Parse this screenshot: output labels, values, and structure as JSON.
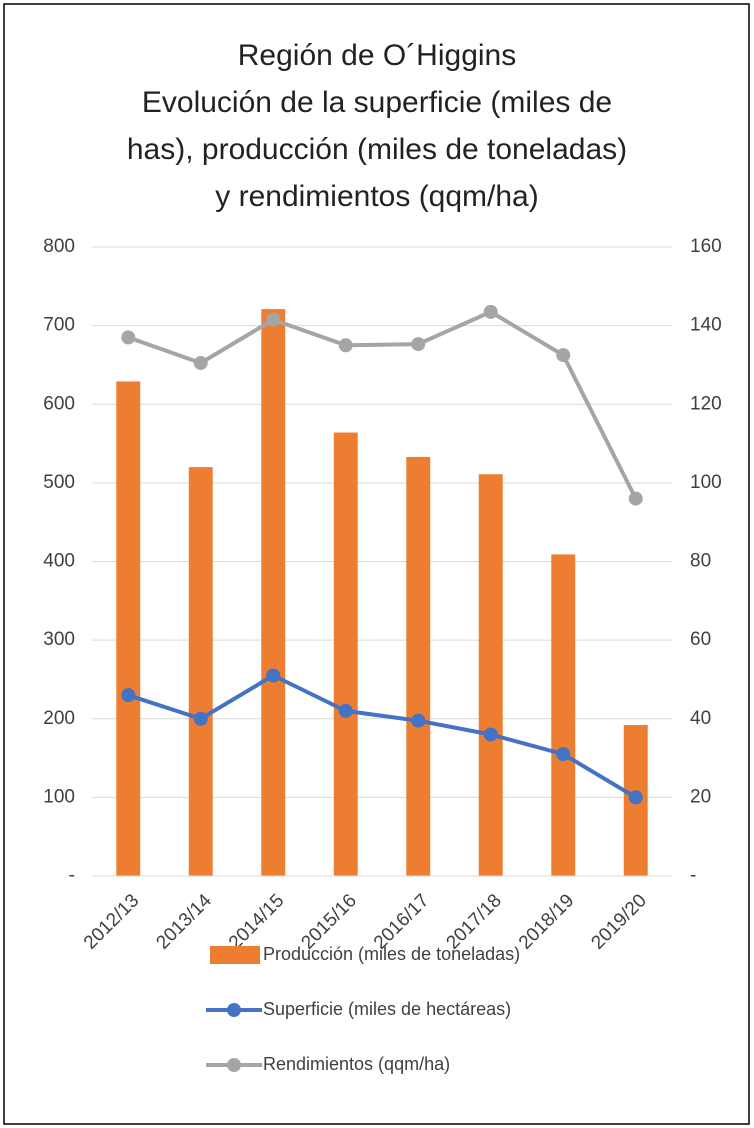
{
  "chart_data": {
    "type": "bar_line",
    "title": [
      "Región de O´Higgins",
      "Evolución de la superficie (miles de",
      "has), producción (miles de toneladas)",
      "y rendimientos (qqm/ha)"
    ],
    "categories": [
      "2012/13",
      "2013/14",
      "2014/15",
      "2015/16",
      "2016/17",
      "2017/18",
      "2018/19",
      "2019/20"
    ],
    "series": [
      {
        "name": "Producción (miles de toneladas)",
        "type": "bar",
        "color": "#ed7d31",
        "axis": "y",
        "values": [
          629,
          520,
          721,
          564,
          533,
          511,
          409,
          192
        ]
      },
      {
        "name": "Superficie (miles de hectáreas)",
        "type": "line",
        "color": "#4472c4",
        "axis": "y2",
        "values": [
          46,
          40,
          51,
          42,
          39.5,
          36,
          31,
          20
        ]
      },
      {
        "name": "Rendimientos (qqm/ha)",
        "type": "line",
        "color": "#a5a5a5",
        "axis": "y2",
        "values": [
          137,
          130.5,
          141.5,
          135,
          135.3,
          143.5,
          132.5,
          96
        ]
      }
    ],
    "ylim": [
      0,
      800
    ],
    "yticks": [
      {
        "value": 0,
        "label": "-"
      },
      100,
      200,
      300,
      400,
      500,
      600,
      700,
      800
    ],
    "y2lim": [
      0,
      160
    ],
    "y2ticks": [
      {
        "value": 0,
        "label": "-"
      },
      20,
      40,
      60,
      80,
      100,
      120,
      140,
      160
    ],
    "grid": true,
    "legend": "bottom"
  }
}
